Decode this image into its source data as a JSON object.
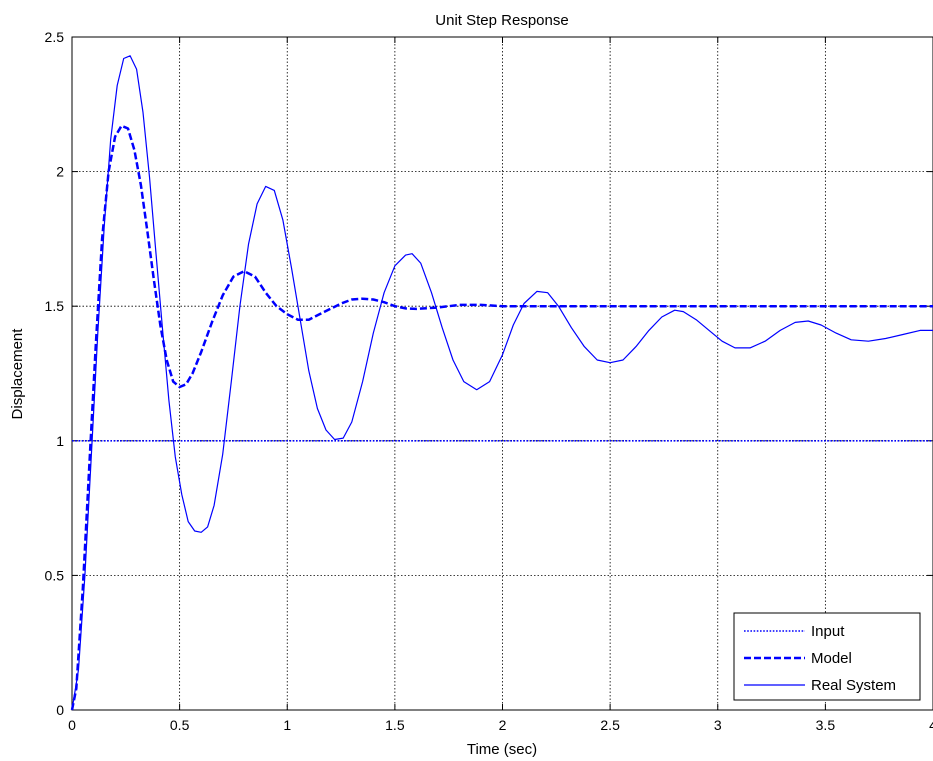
{
  "chart_data": {
    "type": "line",
    "title": "Unit Step Response",
    "xlabel": "Time (sec)",
    "ylabel": "Displacement",
    "xlim": [
      0,
      4
    ],
    "ylim": [
      0,
      2.5
    ],
    "xticks": [
      0,
      0.5,
      1,
      1.5,
      2,
      2.5,
      3,
      3.5,
      4
    ],
    "xtick_labels": [
      "0",
      "0.5",
      "1",
      "1.5",
      "2",
      "2.5",
      "3",
      "3.5",
      "4"
    ],
    "yticks": [
      0,
      0.5,
      1,
      1.5,
      2,
      2.5
    ],
    "ytick_labels": [
      "0",
      "0.5",
      "1",
      "1.5",
      "2",
      "2.5"
    ],
    "grid": true,
    "legend_position": "bottom-right",
    "color": "#0000ff",
    "series": [
      {
        "name": "Input",
        "style": "dotted",
        "x": [
          0,
          4
        ],
        "y": [
          1,
          1
        ]
      },
      {
        "name": "Model",
        "style": "dashed",
        "x": [
          0,
          0.02,
          0.05,
          0.08,
          0.11,
          0.14,
          0.17,
          0.2,
          0.23,
          0.26,
          0.29,
          0.32,
          0.35,
          0.38,
          0.41,
          0.44,
          0.47,
          0.5,
          0.53,
          0.56,
          0.6,
          0.65,
          0.7,
          0.75,
          0.8,
          0.85,
          0.9,
          0.95,
          1.0,
          1.05,
          1.1,
          1.15,
          1.2,
          1.25,
          1.3,
          1.35,
          1.4,
          1.45,
          1.5,
          1.55,
          1.6,
          1.7,
          1.8,
          1.9,
          2.0,
          2.2,
          2.4,
          2.6,
          2.8,
          3.0,
          3.2,
          3.4,
          3.6,
          3.8,
          4.0
        ],
        "y": [
          0,
          0.08,
          0.45,
          0.9,
          1.35,
          1.75,
          2.0,
          2.13,
          2.17,
          2.16,
          2.08,
          1.95,
          1.78,
          1.6,
          1.43,
          1.3,
          1.22,
          1.2,
          1.21,
          1.25,
          1.33,
          1.44,
          1.54,
          1.61,
          1.63,
          1.61,
          1.55,
          1.5,
          1.47,
          1.45,
          1.45,
          1.47,
          1.49,
          1.51,
          1.525,
          1.528,
          1.525,
          1.515,
          1.5,
          1.492,
          1.49,
          1.495,
          1.505,
          1.505,
          1.5,
          1.5,
          1.5,
          1.5,
          1.5,
          1.5,
          1.5,
          1.5,
          1.5,
          1.5,
          1.5
        ]
      },
      {
        "name": "Real System",
        "style": "solid",
        "x": [
          0,
          0.03,
          0.06,
          0.09,
          0.12,
          0.15,
          0.18,
          0.21,
          0.24,
          0.27,
          0.3,
          0.33,
          0.36,
          0.39,
          0.42,
          0.45,
          0.48,
          0.51,
          0.54,
          0.57,
          0.6,
          0.63,
          0.66,
          0.7,
          0.74,
          0.78,
          0.82,
          0.86,
          0.9,
          0.94,
          0.98,
          1.02,
          1.06,
          1.1,
          1.14,
          1.18,
          1.22,
          1.26,
          1.3,
          1.35,
          1.4,
          1.45,
          1.5,
          1.55,
          1.58,
          1.62,
          1.67,
          1.72,
          1.77,
          1.82,
          1.88,
          1.94,
          2.0,
          2.05,
          2.1,
          2.16,
          2.21,
          2.26,
          2.32,
          2.38,
          2.44,
          2.5,
          2.56,
          2.62,
          2.68,
          2.74,
          2.8,
          2.84,
          2.9,
          2.96,
          3.02,
          3.08,
          3.15,
          3.22,
          3.29,
          3.36,
          3.42,
          3.48,
          3.55,
          3.62,
          3.7,
          3.78,
          3.86,
          3.94,
          4.0
        ],
        "y": [
          0,
          0.15,
          0.5,
          0.95,
          1.4,
          1.8,
          2.12,
          2.32,
          2.42,
          2.43,
          2.38,
          2.22,
          1.98,
          1.7,
          1.42,
          1.15,
          0.94,
          0.8,
          0.7,
          0.665,
          0.66,
          0.68,
          0.76,
          0.95,
          1.22,
          1.5,
          1.73,
          1.88,
          1.945,
          1.93,
          1.82,
          1.64,
          1.45,
          1.26,
          1.12,
          1.04,
          1.005,
          1.01,
          1.07,
          1.22,
          1.4,
          1.55,
          1.65,
          1.69,
          1.695,
          1.66,
          1.55,
          1.42,
          1.3,
          1.22,
          1.19,
          1.22,
          1.32,
          1.43,
          1.51,
          1.555,
          1.55,
          1.5,
          1.42,
          1.35,
          1.3,
          1.29,
          1.3,
          1.35,
          1.41,
          1.46,
          1.485,
          1.48,
          1.45,
          1.41,
          1.37,
          1.345,
          1.345,
          1.37,
          1.41,
          1.44,
          1.445,
          1.43,
          1.4,
          1.375,
          1.37,
          1.38,
          1.395,
          1.41,
          1.41
        ]
      }
    ]
  }
}
